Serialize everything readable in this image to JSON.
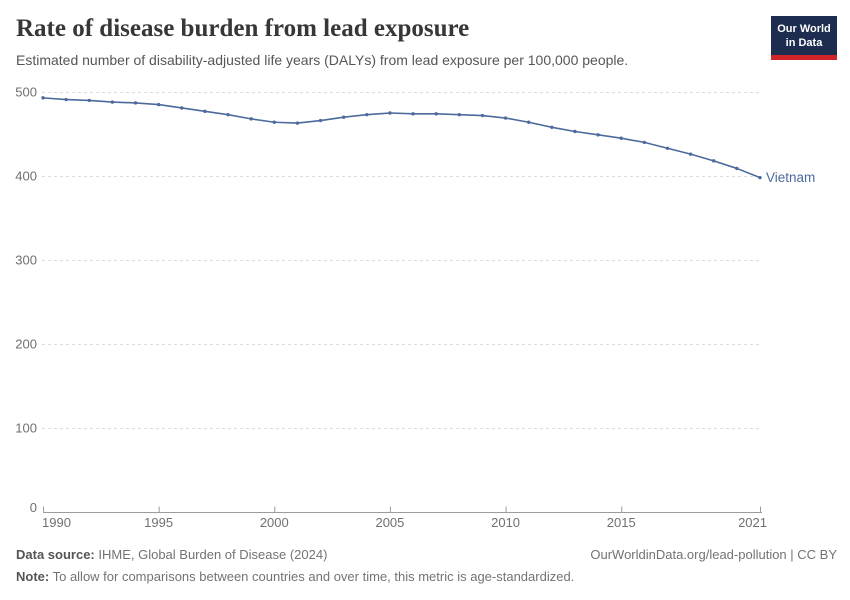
{
  "header": {
    "title": "Rate of disease burden from lead exposure",
    "subtitle": "Estimated number of disability-adjusted life years (DALYs) from lead exposure per 100,000 people.",
    "logo_line1": "Our World",
    "logo_line2": "in Data"
  },
  "chart_data": {
    "type": "line",
    "title": "Rate of disease burden from lead exposure",
    "x": [
      1990,
      1991,
      1992,
      1993,
      1994,
      1995,
      1996,
      1997,
      1998,
      1999,
      2000,
      2001,
      2002,
      2003,
      2004,
      2005,
      2006,
      2007,
      2008,
      2009,
      2010,
      2011,
      2012,
      2013,
      2014,
      2015,
      2016,
      2017,
      2018,
      2019,
      2020,
      2021
    ],
    "series": [
      {
        "name": "Vietnam",
        "color": "#4C6A9C",
        "values": [
          493,
          491,
          490,
          488,
          487,
          485,
          481,
          477,
          473,
          468,
          464,
          463,
          466,
          470,
          473,
          475,
          474,
          474,
          473,
          472,
          469,
          464,
          458,
          453,
          449,
          445,
          440,
          433,
          426,
          418,
          409,
          398
        ]
      }
    ],
    "x_ticks": [
      1990,
      1995,
      2000,
      2005,
      2010,
      2015,
      2021
    ],
    "y_ticks": [
      0,
      100,
      200,
      300,
      400,
      500
    ],
    "xlim": [
      1990,
      2021
    ],
    "ylim": [
      0,
      500
    ],
    "grid": "horizontal-dashed",
    "legend": "end-of-line-label"
  },
  "footer": {
    "source_label": "Data source:",
    "source_text": " IHME, Global Burden of Disease (2024)",
    "note_label": "Note:",
    "note_text": " To allow for comparisons between countries and over time, this metric is age-standardized.",
    "attribution": "OurWorldinData.org/lead-pollution | CC BY"
  },
  "colors": {
    "line": "#4C6A9C",
    "grid": "#dcdcdc",
    "axis": "#9c9c9c",
    "tick_text": "#707070",
    "logo_bg": "#1d2d4f",
    "logo_red": "#cf2428"
  }
}
